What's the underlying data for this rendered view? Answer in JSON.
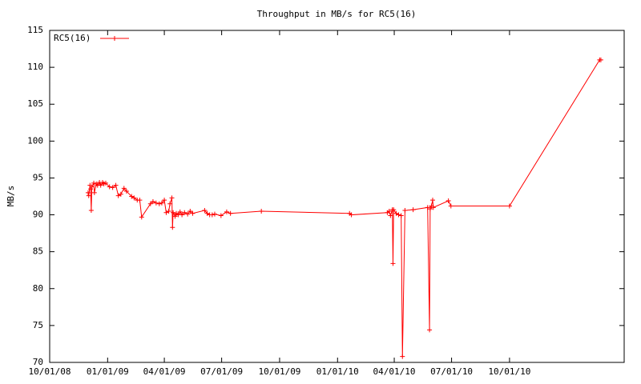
{
  "chart_data": {
    "type": "line",
    "title": "Throughput in MB/s for RC5(16)",
    "y_label": "MB/s",
    "legend": "top-left",
    "ylim": [
      70,
      115
    ],
    "yticks": [
      70,
      75,
      80,
      85,
      90,
      95,
      100,
      105,
      110,
      115
    ],
    "xlim": [
      "2008-10-01",
      "2011-04-01"
    ],
    "xticks": [
      {
        "value": "2008-10-01",
        "label": "10/01/08"
      },
      {
        "value": "2009-01-01",
        "label": "01/01/09"
      },
      {
        "value": "2009-04-01",
        "label": "04/01/09"
      },
      {
        "value": "2009-07-01",
        "label": "07/01/09"
      },
      {
        "value": "2009-10-01",
        "label": "10/01/09"
      },
      {
        "value": "2010-01-01",
        "label": "01/01/10"
      },
      {
        "value": "2010-04-01",
        "label": "04/01/10"
      },
      {
        "value": "2010-07-01",
        "label": "07/01/10"
      },
      {
        "value": "2010-10-01",
        "label": "10/01/10"
      }
    ],
    "series": [
      {
        "name": "RC5(16)",
        "color": "#ff0000",
        "x": [
          "2008-12-01",
          "2008-12-02",
          "2008-12-04",
          "2008-12-05",
          "2008-12-06",
          "2008-12-07",
          "2008-12-10",
          "2008-12-11",
          "2008-12-14",
          "2008-12-16",
          "2008-12-19",
          "2008-12-21",
          "2008-12-24",
          "2008-12-26",
          "2008-12-29",
          "2009-01-04",
          "2009-01-09",
          "2009-01-14",
          "2009-01-18",
          "2009-01-22",
          "2009-01-27",
          "2009-01-31",
          "2009-02-08",
          "2009-02-12",
          "2009-02-17",
          "2009-02-21",
          "2009-02-24",
          "2009-03-10",
          "2009-03-14",
          "2009-03-19",
          "2009-03-24",
          "2009-03-28",
          "2009-04-01",
          "2009-04-04",
          "2009-04-08",
          "2009-04-10",
          "2009-04-13",
          "2009-04-14",
          "2009-04-15",
          "2009-04-18",
          "2009-04-20",
          "2009-04-23",
          "2009-04-26",
          "2009-04-29",
          "2009-05-03",
          "2009-05-08",
          "2009-05-12",
          "2009-05-16",
          "2009-06-04",
          "2009-06-08",
          "2009-06-12",
          "2009-06-16",
          "2009-06-20",
          "2009-06-30",
          "2009-07-09",
          "2009-07-15",
          "2009-09-02",
          "2010-01-20",
          "2010-01-23",
          "2010-03-21",
          "2010-03-24",
          "2010-03-26",
          "2010-03-29",
          "2010-03-30",
          "2010-03-31",
          "2010-04-04",
          "2010-04-08",
          "2010-04-12",
          "2010-04-14",
          "2010-04-18",
          "2010-05-01",
          "2010-05-24",
          "2010-05-27",
          "2010-05-28",
          "2010-05-30",
          "2010-06-01",
          "2010-06-02",
          "2010-06-26",
          "2010-06-30",
          "2010-10-01",
          "2011-02-21",
          "2011-02-23"
        ],
        "values": [
          93.0,
          92.6,
          94.0,
          93.5,
          90.6,
          93.8,
          94.3,
          93.0,
          94.2,
          94.0,
          94.4,
          94.0,
          94.4,
          94.2,
          94.3,
          93.8,
          93.7,
          94.0,
          92.6,
          92.8,
          93.6,
          93.2,
          92.5,
          92.3,
          92.0,
          92.0,
          89.7,
          91.5,
          91.8,
          91.6,
          91.5,
          91.6,
          92.0,
          90.3,
          90.5,
          91.5,
          92.3,
          88.3,
          90.3,
          89.8,
          90.2,
          90.0,
          90.4,
          90.0,
          90.3,
          90.1,
          90.5,
          90.2,
          90.6,
          90.2,
          90.0,
          90.0,
          90.1,
          89.9,
          90.4,
          90.2,
          90.5,
          90.2,
          90.0,
          90.3,
          90.5,
          89.9,
          90.7,
          83.4,
          90.7,
          90.2,
          90.0,
          89.9,
          70.8,
          90.6,
          90.7,
          91.0,
          74.4,
          90.8,
          91.2,
          92.0,
          91.0,
          91.9,
          91.2,
          91.2,
          111.0,
          111.0
        ]
      }
    ]
  }
}
